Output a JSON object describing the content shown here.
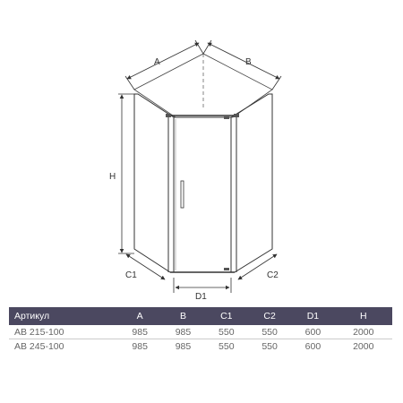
{
  "diagram": {
    "labels": {
      "A": "A",
      "B": "B",
      "H": "H",
      "C1": "C1",
      "C2": "C2",
      "D1": "D1"
    }
  },
  "table": {
    "header_color": "#4b4860",
    "headers": [
      "Артикул",
      "A",
      "B",
      "C1",
      "C2",
      "D1",
      "H"
    ],
    "rows": [
      [
        "AB 215-100",
        "985",
        "985",
        "550",
        "550",
        "600",
        "2000"
      ],
      [
        "AB 245-100",
        "985",
        "985",
        "550",
        "550",
        "600",
        "2000"
      ]
    ]
  }
}
